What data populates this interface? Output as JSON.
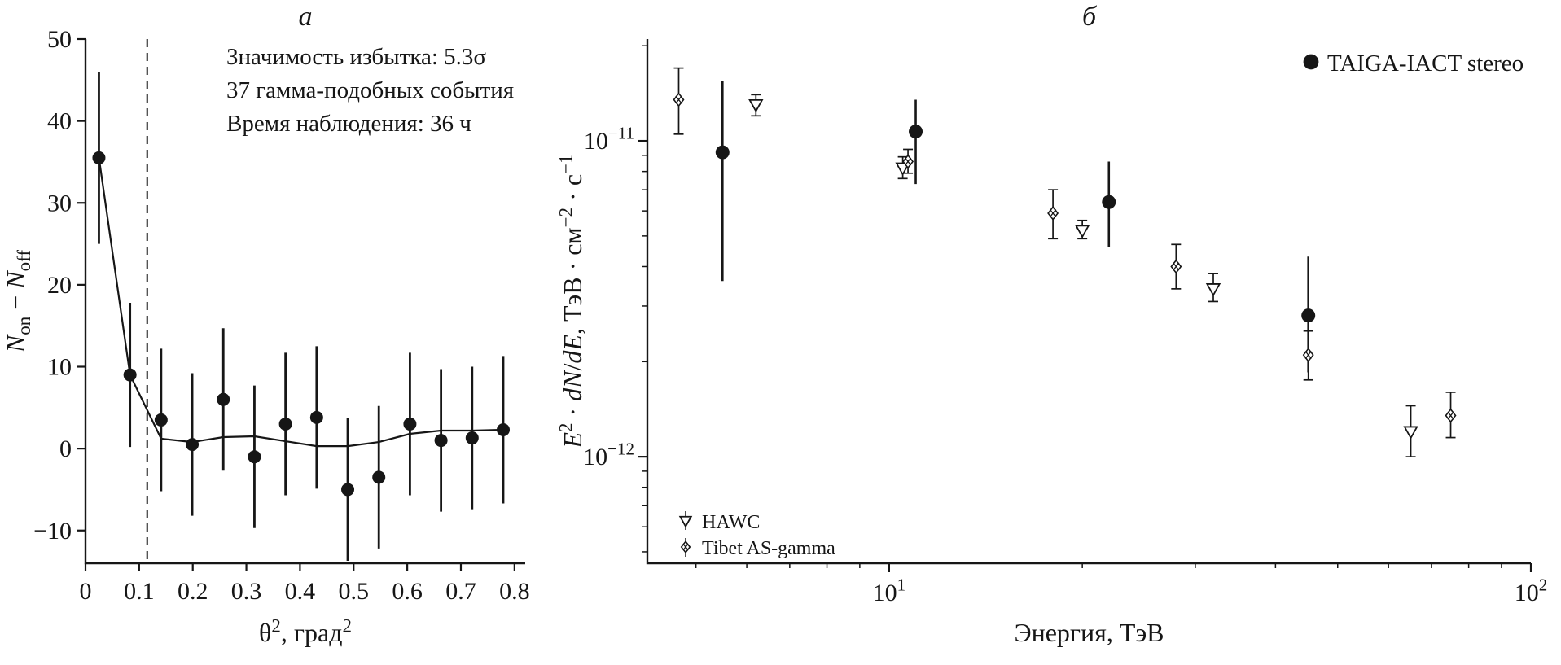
{
  "chart_data": [
    {
      "type": "scatter",
      "title": "а",
      "xlabel": "θ², град²",
      "ylabel": "Non − Noff",
      "xlabel_segments": [
        {
          "t": "θ"
        },
        {
          "t": "2",
          "sup": true
        },
        {
          "t": ", град"
        },
        {
          "t": "2",
          "sup": true
        }
      ],
      "ylabel_segments": [
        {
          "t": "N",
          "i": true
        },
        {
          "t": "on",
          "sub": true
        },
        {
          "t": " − "
        },
        {
          "t": "N",
          "i": true
        },
        {
          "t": "off",
          "sub": true
        }
      ],
      "xlim": [
        0,
        0.82
      ],
      "ylim": [
        -14,
        50
      ],
      "xticks": [
        {
          "v": 0,
          "label": "0"
        },
        {
          "v": 0.1,
          "label": "0.1"
        },
        {
          "v": 0.2,
          "label": "0.2"
        },
        {
          "v": 0.3,
          "label": "0.3"
        },
        {
          "v": 0.4,
          "label": "0.4"
        },
        {
          "v": 0.5,
          "label": "0.5"
        },
        {
          "v": 0.6,
          "label": "0.6"
        },
        {
          "v": 0.7,
          "label": "0.7"
        },
        {
          "v": 0.8,
          "label": "0.8"
        }
      ],
      "yticks": [
        {
          "v": -10,
          "label": "−10"
        },
        {
          "v": 0,
          "label": "0"
        },
        {
          "v": 10,
          "label": "10"
        },
        {
          "v": 20,
          "label": "20"
        },
        {
          "v": 30,
          "label": "30"
        },
        {
          "v": 40,
          "label": "40"
        },
        {
          "v": 50,
          "label": "50"
        }
      ],
      "cut_line_x": 0.115,
      "annotations": [
        "Значимость избытка: 5.3σ",
        "37 гамма-подобных события",
        "Время наблюдения: 36 ч"
      ],
      "points": {
        "x": [
          0.025,
          0.083,
          0.141,
          0.199,
          0.257,
          0.315,
          0.373,
          0.431,
          0.489,
          0.547,
          0.605,
          0.663,
          0.721,
          0.779
        ],
        "y": [
          35.5,
          9,
          3.5,
          0.5,
          6,
          -1,
          3,
          3.8,
          -5,
          -3.5,
          3,
          1,
          1.3,
          2.3
        ],
        "yerr": [
          10.5,
          8.8,
          8.7,
          8.7,
          8.7,
          8.7,
          8.7,
          8.7,
          8.7,
          8.7,
          8.7,
          8.7,
          8.7,
          9
        ]
      },
      "fit_line_y": [
        35.5,
        9,
        1.2,
        0.8,
        1.4,
        1.5,
        0.9,
        0.3,
        0.3,
        0.8,
        1.8,
        2.2,
        2.2,
        2.3
      ],
      "grid": false
    },
    {
      "type": "scatter",
      "xscale": "log",
      "yscale": "log",
      "title": "б",
      "xlabel": "Энергия, ТэВ",
      "ylabel": "E² · dN/dE, ТэВ · см⁻² · с⁻¹",
      "xlabel_segments": [
        {
          "t": "Энергия, ТэВ"
        }
      ],
      "ylabel_segments": [
        {
          "t": "E",
          "i": true
        },
        {
          "t": "2",
          "sup": true
        },
        {
          "t": " · "
        },
        {
          "t": "dN",
          "i": true
        },
        {
          "t": "/"
        },
        {
          "t": "dE",
          "i": true
        },
        {
          "t": ", ТэВ · см"
        },
        {
          "t": "−2",
          "sup": true
        },
        {
          "t": " · с"
        },
        {
          "t": "−1",
          "sup": true
        }
      ],
      "xlim": [
        4.2,
        100
      ],
      "ylim": [
        4.6e-13,
        2.1e-11
      ],
      "xticks": [
        {
          "v": 10,
          "base": "10",
          "exp": "1"
        },
        {
          "v": 100,
          "base": "10",
          "exp": "2"
        }
      ],
      "yticks": [
        {
          "v": 1e-11,
          "base": "10",
          "exp": "−11"
        },
        {
          "v": 1e-12,
          "base": "10",
          "exp": "−12"
        }
      ],
      "series": [
        {
          "name": "TAIGA-IACT stereo",
          "marker": "filled-circle",
          "x": [
            5.5,
            11,
            22,
            45
          ],
          "y": [
            9.2e-12,
            1.07e-11,
            6.4e-12,
            2.8e-12
          ],
          "ylo": [
            3.6e-12,
            7.3e-12,
            4.6e-12,
            1.85e-12
          ],
          "yhi": [
            1.55e-11,
            1.35e-11,
            8.6e-12,
            4.3e-12
          ]
        },
        {
          "name": "HAWC",
          "marker": "open-triangle-down",
          "x": [
            6.2,
            10.5,
            20,
            32,
            65
          ],
          "y": [
            1.3e-11,
            8.2e-12,
            5.2e-12,
            3.4e-12,
            1.2e-12
          ],
          "ylo": [
            1.2e-11,
            7.6e-12,
            4.9e-12,
            3.1e-12,
            1e-12
          ],
          "yhi": [
            1.4e-11,
            8.9e-12,
            5.6e-12,
            3.8e-12,
            1.45e-12
          ]
        },
        {
          "name": "Tibet AS-gamma",
          "marker": "crossed-diamond",
          "x": [
            4.7,
            10.7,
            18,
            28,
            45,
            75
          ],
          "y": [
            1.35e-11,
            8.6e-12,
            5.9e-12,
            4e-12,
            2.1e-12,
            1.35e-12
          ],
          "ylo": [
            1.05e-11,
            7.9e-12,
            4.9e-12,
            3.4e-12,
            1.75e-12,
            1.15e-12
          ],
          "yhi": [
            1.7e-11,
            9.4e-12,
            7e-12,
            4.7e-12,
            2.5e-12,
            1.6e-12
          ]
        }
      ],
      "legend": {
        "top_right": "TAIGA-IACT stereo",
        "bottom_left": [
          "HAWC",
          "Tibet AS-gamma"
        ]
      }
    }
  ]
}
